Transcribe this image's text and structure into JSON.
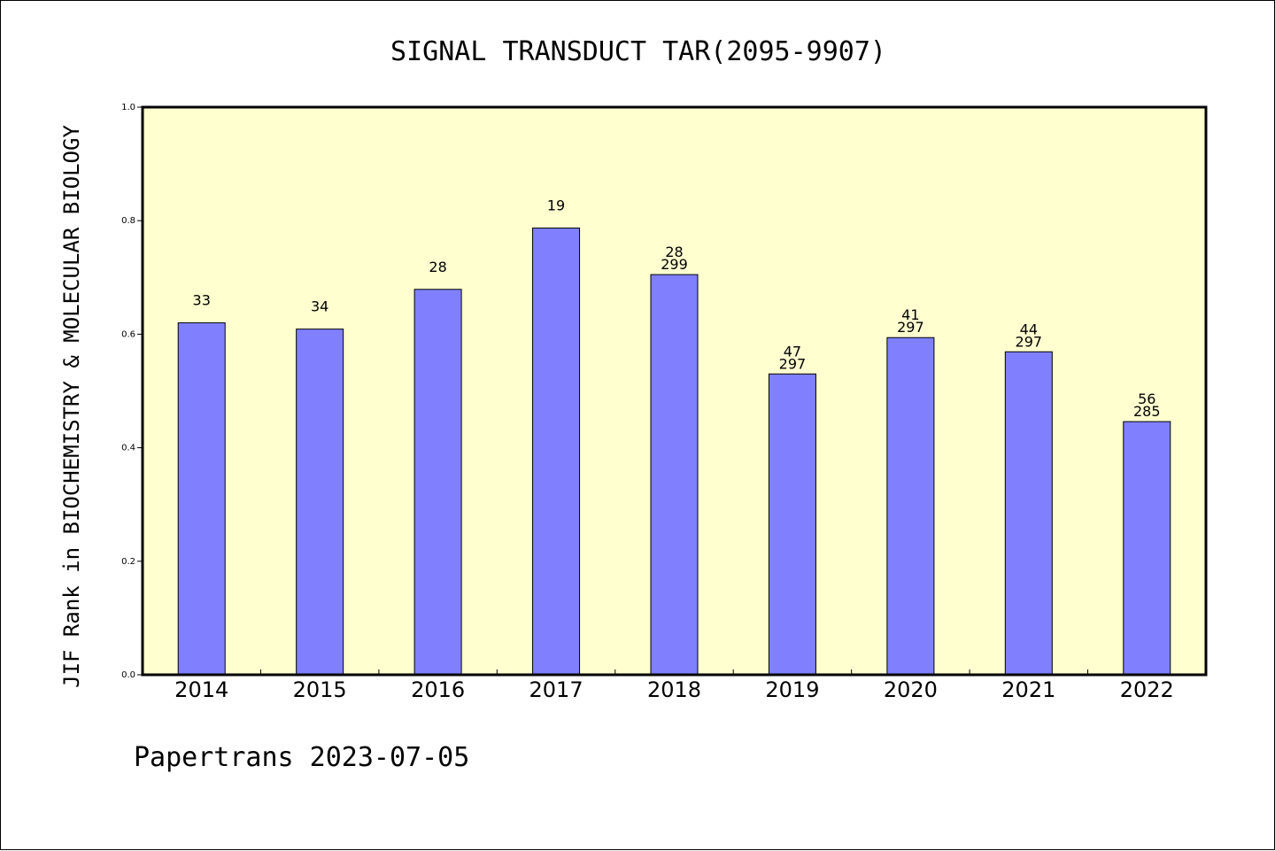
{
  "chart_data": {
    "type": "bar",
    "title": "SIGNAL TRANSDUCT TAR(2095-9907)",
    "xlabel": "",
    "ylabel": "JIF Rank in BIOCHEMISTRY & MOLECULAR BIOLOGY",
    "ylim": [
      0,
      1.0
    ],
    "yticks": [
      "0.0",
      "0.2",
      "0.4",
      "0.6",
      "0.8",
      "1.0"
    ],
    "categories": [
      "2014",
      "2015",
      "2016",
      "2017",
      "2018",
      "2019",
      "2020",
      "2021",
      "2022"
    ],
    "values": [
      0.62,
      0.609,
      0.679,
      0.787,
      0.705,
      0.53,
      0.594,
      0.569,
      0.446
    ],
    "labels": [
      [
        "33"
      ],
      [
        "34"
      ],
      [
        "28"
      ],
      [
        "19"
      ],
      [
        "28",
        "299"
      ],
      [
        "47",
        "297"
      ],
      [
        "41",
        "297"
      ],
      [
        "44",
        "297"
      ],
      [
        "56",
        "285"
      ]
    ],
    "grid": false,
    "colors": {
      "bar": "#8080ff",
      "plot_bg": "#ffffd0",
      "bar_edge": "#000000"
    }
  },
  "footer": {
    "text": "Papertrans 2023-07-05"
  }
}
